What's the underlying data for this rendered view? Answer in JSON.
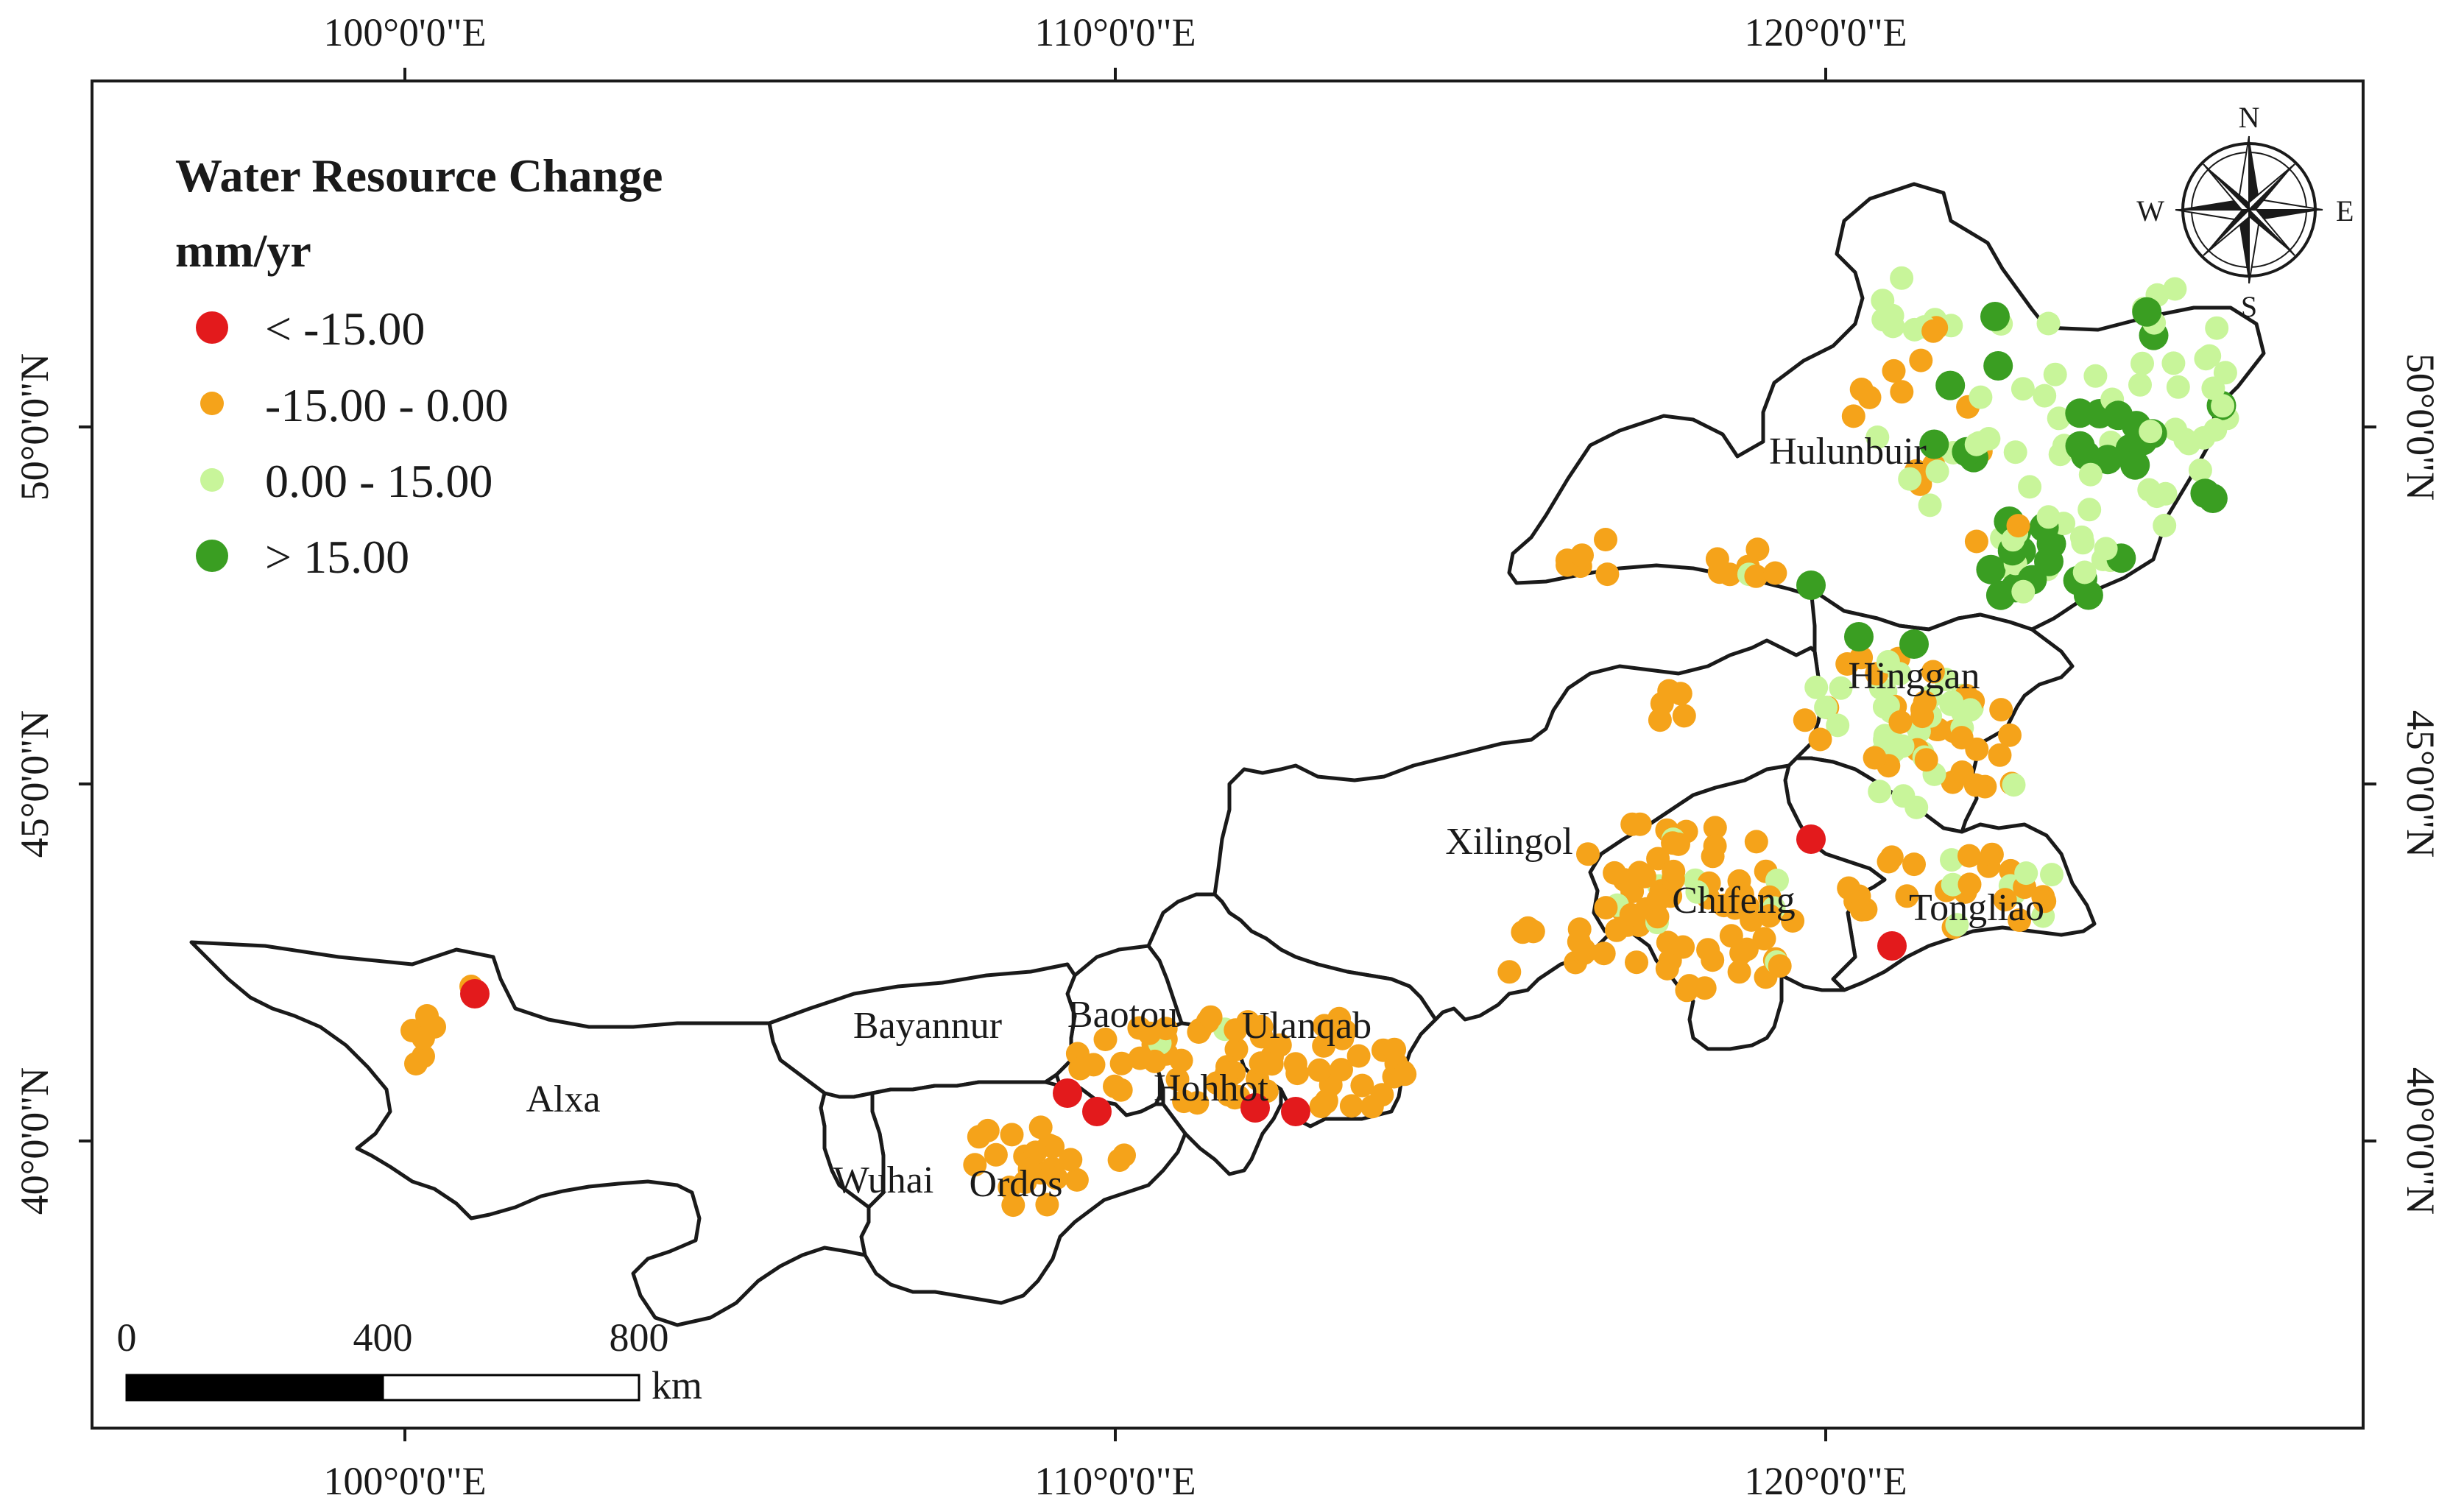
{
  "legend": {
    "title": "Water Resource Change",
    "unit": "mm/yr",
    "classes": [
      {
        "label": "< -15.00",
        "color": "#e31a1c"
      },
      {
        "label": "-15.00 - 0.00",
        "color": "#f5a31a"
      },
      {
        "label": "0.00 - 15.00",
        "color": "#c8f59a"
      },
      {
        "label": "> 15.00",
        "color": "#3a9e22"
      }
    ]
  },
  "axes": {
    "lon_labels": [
      "100°0'0\"E",
      "110°0'0\"E",
      "120°0'0\"E"
    ],
    "lat_labels": [
      "50°0'0\"N",
      "45°0'0\"N",
      "40°0'0\"N"
    ]
  },
  "regions": [
    "Hulunbuir",
    "Hinggan",
    "Xilingol",
    "Chifeng",
    "Tongliao",
    "Alxa",
    "Bayannur",
    "Baotou",
    "Ulanqab",
    "Hohhot",
    "Wuhai",
    "Ordos"
  ],
  "scale_bar": {
    "labels": [
      "0",
      "400",
      "800"
    ],
    "unit": "km"
  },
  "compass": {
    "north": "N",
    "south": "S",
    "east": "E",
    "west": "W"
  }
}
